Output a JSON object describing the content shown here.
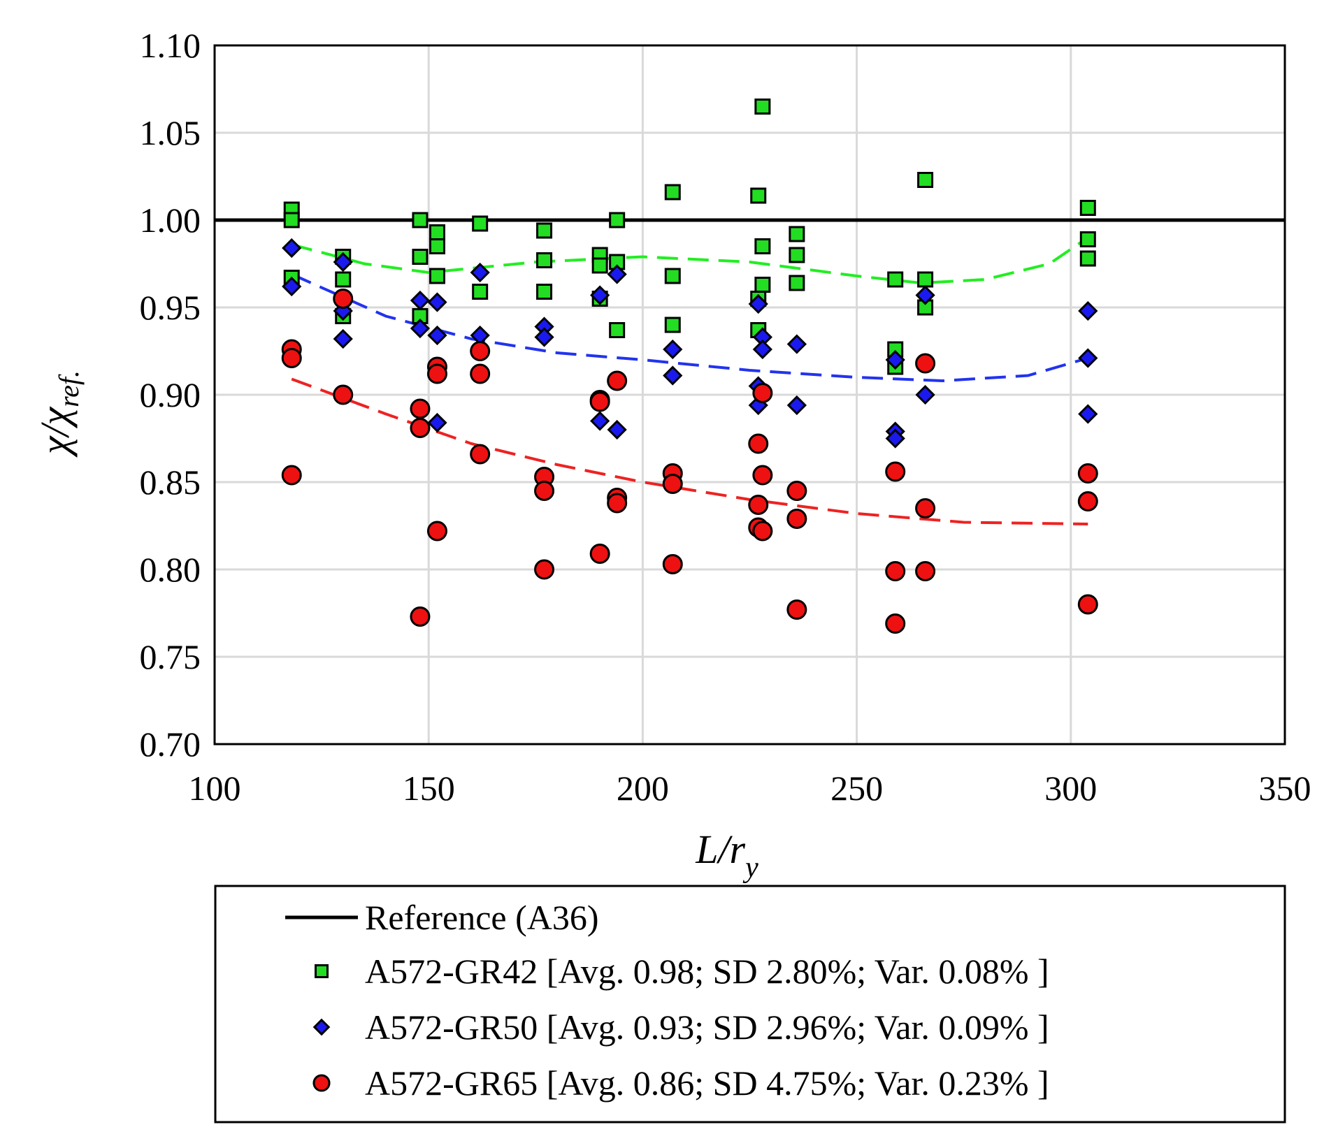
{
  "chart_data": {
    "type": "scatter",
    "xlabel": "L/r",
    "xlabel_sub": "y",
    "ylabel": "χ/χ",
    "ylabel_sub": "ref.",
    "xlim": [
      100,
      350
    ],
    "ylim": [
      0.7,
      1.1
    ],
    "x_ticks": [
      "100",
      "150",
      "200",
      "250",
      "300",
      "350"
    ],
    "y_ticks": [
      "0.70",
      "0.75",
      "0.80",
      "0.85",
      "0.90",
      "0.95",
      "1.00",
      "1.05",
      "1.10"
    ],
    "grid": true,
    "legend_position": "bottom",
    "reference": {
      "name": "Reference (A36)",
      "y": 1.0,
      "color": "#000000"
    },
    "series": [
      {
        "name": "A572-GR42 [Avg. 0.98; SD 2.80%; Var. 0.08% ]",
        "marker": "square",
        "color": "#22dd22",
        "trend_color": "#22ee22",
        "points": [
          [
            118,
            1.006
          ],
          [
            118,
            1.0
          ],
          [
            118,
            0.967
          ],
          [
            130,
            0.979
          ],
          [
            130,
            0.966
          ],
          [
            130,
            0.945
          ],
          [
            148,
            1.0
          ],
          [
            148,
            0.979
          ],
          [
            148,
            0.945
          ],
          [
            152,
            0.993
          ],
          [
            152,
            0.985
          ],
          [
            152,
            0.968
          ],
          [
            162,
            0.998
          ],
          [
            162,
            0.959
          ],
          [
            177,
            0.994
          ],
          [
            177,
            0.977
          ],
          [
            177,
            0.959
          ],
          [
            190,
            0.98
          ],
          [
            190,
            0.974
          ],
          [
            190,
            0.955
          ],
          [
            194,
            1.0
          ],
          [
            194,
            0.976
          ],
          [
            194,
            0.937
          ],
          [
            207,
            1.016
          ],
          [
            207,
            0.968
          ],
          [
            207,
            0.94
          ],
          [
            227,
            1.014
          ],
          [
            227,
            0.955
          ],
          [
            227,
            0.937
          ],
          [
            228,
            1.065
          ],
          [
            228,
            0.985
          ],
          [
            228,
            0.963
          ],
          [
            236,
            0.992
          ],
          [
            236,
            0.98
          ],
          [
            236,
            0.964
          ],
          [
            259,
            0.966
          ],
          [
            259,
            0.926
          ],
          [
            259,
            0.916
          ],
          [
            266,
            1.023
          ],
          [
            266,
            0.966
          ],
          [
            266,
            0.95
          ],
          [
            304,
            1.007
          ],
          [
            304,
            0.989
          ],
          [
            304,
            0.978
          ]
        ],
        "trend": [
          [
            118,
            0.986
          ],
          [
            135,
            0.975
          ],
          [
            150,
            0.97
          ],
          [
            175,
            0.976
          ],
          [
            200,
            0.979
          ],
          [
            225,
            0.976
          ],
          [
            250,
            0.968
          ],
          [
            265,
            0.964
          ],
          [
            280,
            0.966
          ],
          [
            295,
            0.975
          ],
          [
            304,
            0.99
          ]
        ]
      },
      {
        "name": "A572-GR50 [Avg. 0.93; SD 2.96%; Var. 0.09% ]",
        "marker": "diamond",
        "color": "#1a1aee",
        "trend_color": "#2233ee",
        "points": [
          [
            118,
            0.984
          ],
          [
            118,
            0.962
          ],
          [
            130,
            0.976
          ],
          [
            130,
            0.948
          ],
          [
            130,
            0.932
          ],
          [
            148,
            0.954
          ],
          [
            148,
            0.938
          ],
          [
            152,
            0.953
          ],
          [
            152,
            0.934
          ],
          [
            152,
            0.884
          ],
          [
            162,
            0.97
          ],
          [
            162,
            0.934
          ],
          [
            177,
            0.939
          ],
          [
            177,
            0.933
          ],
          [
            190,
            0.957
          ],
          [
            190,
            0.885
          ],
          [
            194,
            0.969
          ],
          [
            194,
            0.88
          ],
          [
            207,
            0.926
          ],
          [
            207,
            0.911
          ],
          [
            227,
            0.952
          ],
          [
            227,
            0.905
          ],
          [
            227,
            0.894
          ],
          [
            228,
            0.933
          ],
          [
            228,
            0.926
          ],
          [
            236,
            0.929
          ],
          [
            236,
            0.894
          ],
          [
            259,
            0.92
          ],
          [
            259,
            0.879
          ],
          [
            259,
            0.875
          ],
          [
            266,
            0.957
          ],
          [
            266,
            0.9
          ],
          [
            304,
            0.948
          ],
          [
            304,
            0.921
          ],
          [
            304,
            0.889
          ]
        ],
        "trend": [
          [
            118,
            0.969
          ],
          [
            140,
            0.945
          ],
          [
            160,
            0.932
          ],
          [
            180,
            0.924
          ],
          [
            200,
            0.92
          ],
          [
            225,
            0.914
          ],
          [
            250,
            0.91
          ],
          [
            270,
            0.908
          ],
          [
            290,
            0.911
          ],
          [
            304,
            0.921
          ]
        ]
      },
      {
        "name": "A572-GR65 [Avg. 0.86; SD 4.75%; Var. 0.23% ]",
        "marker": "circle",
        "color": "#ee1111",
        "trend_color": "#ee2222",
        "points": [
          [
            118,
            0.926
          ],
          [
            118,
            0.921
          ],
          [
            118,
            0.854
          ],
          [
            130,
            0.955
          ],
          [
            130,
            0.9
          ],
          [
            148,
            0.892
          ],
          [
            148,
            0.881
          ],
          [
            148,
            0.773
          ],
          [
            152,
            0.916
          ],
          [
            152,
            0.912
          ],
          [
            152,
            0.822
          ],
          [
            162,
            0.925
          ],
          [
            162,
            0.912
          ],
          [
            162,
            0.866
          ],
          [
            177,
            0.853
          ],
          [
            177,
            0.845
          ],
          [
            177,
            0.8
          ],
          [
            190,
            0.897
          ],
          [
            190,
            0.896
          ],
          [
            190,
            0.809
          ],
          [
            194,
            0.908
          ],
          [
            194,
            0.841
          ],
          [
            194,
            0.838
          ],
          [
            207,
            0.855
          ],
          [
            207,
            0.849
          ],
          [
            207,
            0.803
          ],
          [
            227,
            0.872
          ],
          [
            227,
            0.837
          ],
          [
            227,
            0.824
          ],
          [
            228,
            0.901
          ],
          [
            228,
            0.854
          ],
          [
            228,
            0.822
          ],
          [
            236,
            0.845
          ],
          [
            236,
            0.829
          ],
          [
            236,
            0.777
          ],
          [
            259,
            0.856
          ],
          [
            259,
            0.799
          ],
          [
            259,
            0.769
          ],
          [
            266,
            0.918
          ],
          [
            266,
            0.835
          ],
          [
            266,
            0.799
          ],
          [
            304,
            0.855
          ],
          [
            304,
            0.839
          ],
          [
            304,
            0.78
          ]
        ],
        "trend": [
          [
            118,
            0.909
          ],
          [
            140,
            0.889
          ],
          [
            160,
            0.872
          ],
          [
            180,
            0.86
          ],
          [
            200,
            0.85
          ],
          [
            225,
            0.84
          ],
          [
            250,
            0.832
          ],
          [
            275,
            0.827
          ],
          [
            304,
            0.826
          ]
        ]
      }
    ]
  }
}
